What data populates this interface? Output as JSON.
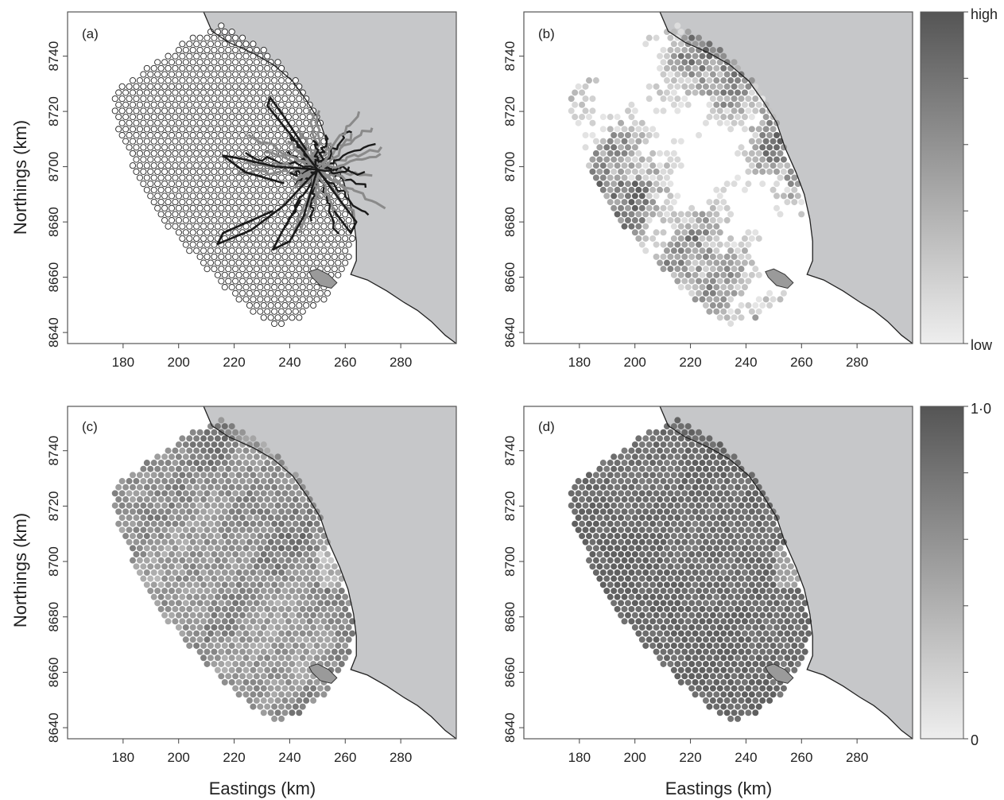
{
  "figure": {
    "x_axis_title": "Eastings (km)",
    "y_axis_title": "Northings (km)",
    "x_ticks": [
      "180",
      "200",
      "220",
      "240",
      "260",
      "280"
    ],
    "y_ticks": [
      "8640",
      "8660",
      "8680",
      "8700",
      "8720",
      "8740"
    ],
    "x_range_km": [
      160,
      300
    ],
    "y_range_km": [
      8636,
      8756
    ],
    "colors": {
      "land": "#c6c7c9",
      "sea": "#ffffff",
      "grid_outline": "#222222",
      "track_dark": "#1a1a1a",
      "track_grey": "#8a8a8a"
    }
  },
  "panels": [
    {
      "label": "(a)",
      "content": "survey-grid-with-tracks"
    },
    {
      "label": "(b)",
      "content": "relative-density-low-to-high"
    },
    {
      "label": "(c)",
      "content": "probability-surface"
    },
    {
      "label": "(d)",
      "content": "probability-surface"
    }
  ],
  "colorbars": [
    {
      "top_label": "high",
      "bottom_label": "low"
    },
    {
      "top_label": "1·0",
      "bottom_label": "0"
    }
  ]
}
